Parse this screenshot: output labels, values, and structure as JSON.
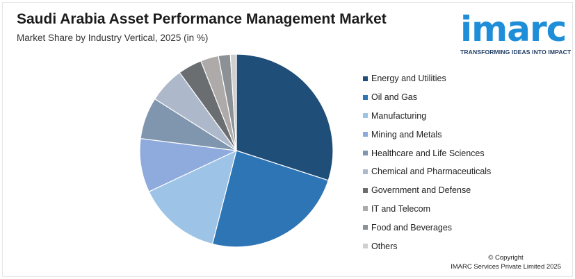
{
  "header": {
    "title": "Saudi Arabia Asset Performance Management Market",
    "subtitle": "Market Share by Industry Vertical, 2025 (in %)"
  },
  "logo": {
    "word": "imarc",
    "tagline": "TRANSFORMING IDEAS INTO IMPACT",
    "color": "#1f8ed8"
  },
  "footer": {
    "copyright": "© Copyright",
    "company": "IMARC Services Private Limited 2025"
  },
  "chart_data": {
    "type": "pie",
    "title": "Saudi Arabia Asset Performance Management Market",
    "subtitle": "Market Share by Industry Vertical, 2025 (in %)",
    "start_angle_deg": 0,
    "direction": "clockwise",
    "legend_position": "right",
    "categories": [
      "Energy and Utilities",
      "Oil and Gas",
      "Manufacturing",
      "Mining and Metals",
      "Healthcare and Life Sciences",
      "Chemical and Pharmaceuticals",
      "Government and Defense",
      "IT and Telecom",
      "Food and Beverages",
      "Others"
    ],
    "values": [
      30,
      24,
      14,
      9,
      7,
      6,
      4,
      3,
      2,
      1
    ],
    "colors": [
      "#1f4e79",
      "#2e75b6",
      "#9dc3e6",
      "#8faadc",
      "#7f96ae",
      "#adb9ca",
      "#6b6e70",
      "#aeaaaa",
      "#8c9196",
      "#d0cece"
    ]
  }
}
